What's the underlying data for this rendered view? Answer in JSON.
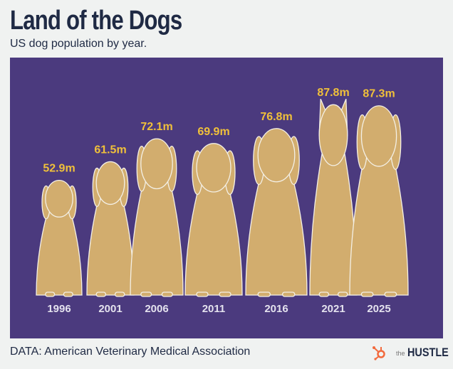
{
  "title": "Land of the Dogs",
  "subtitle": "US dog population by year.",
  "source": "DATA: American Veterinary Medical Association",
  "logo": {
    "prefix": "the",
    "name": "HUSTLE"
  },
  "colors": {
    "background": "#4b3a7e",
    "dog": "#d2ad6e",
    "label": "#f0c03a",
    "year": "#e4e2ee",
    "title": "#1f2a44",
    "logo_icon": "#f26a3d"
  },
  "chart_data": {
    "type": "bar",
    "style": "pictogram (dog silhouettes)",
    "categories": [
      "1996",
      "2001",
      "2006",
      "2011",
      "2016",
      "2021",
      "2025"
    ],
    "values": [
      52.9,
      61.5,
      72.1,
      69.9,
      76.8,
      87.8,
      87.3
    ],
    "data_labels": [
      "52.9m",
      "61.5m",
      "72.1m",
      "69.9m",
      "76.8m",
      "87.8m",
      "87.3m"
    ],
    "unit": "millions",
    "grid": false,
    "legend": "none"
  }
}
